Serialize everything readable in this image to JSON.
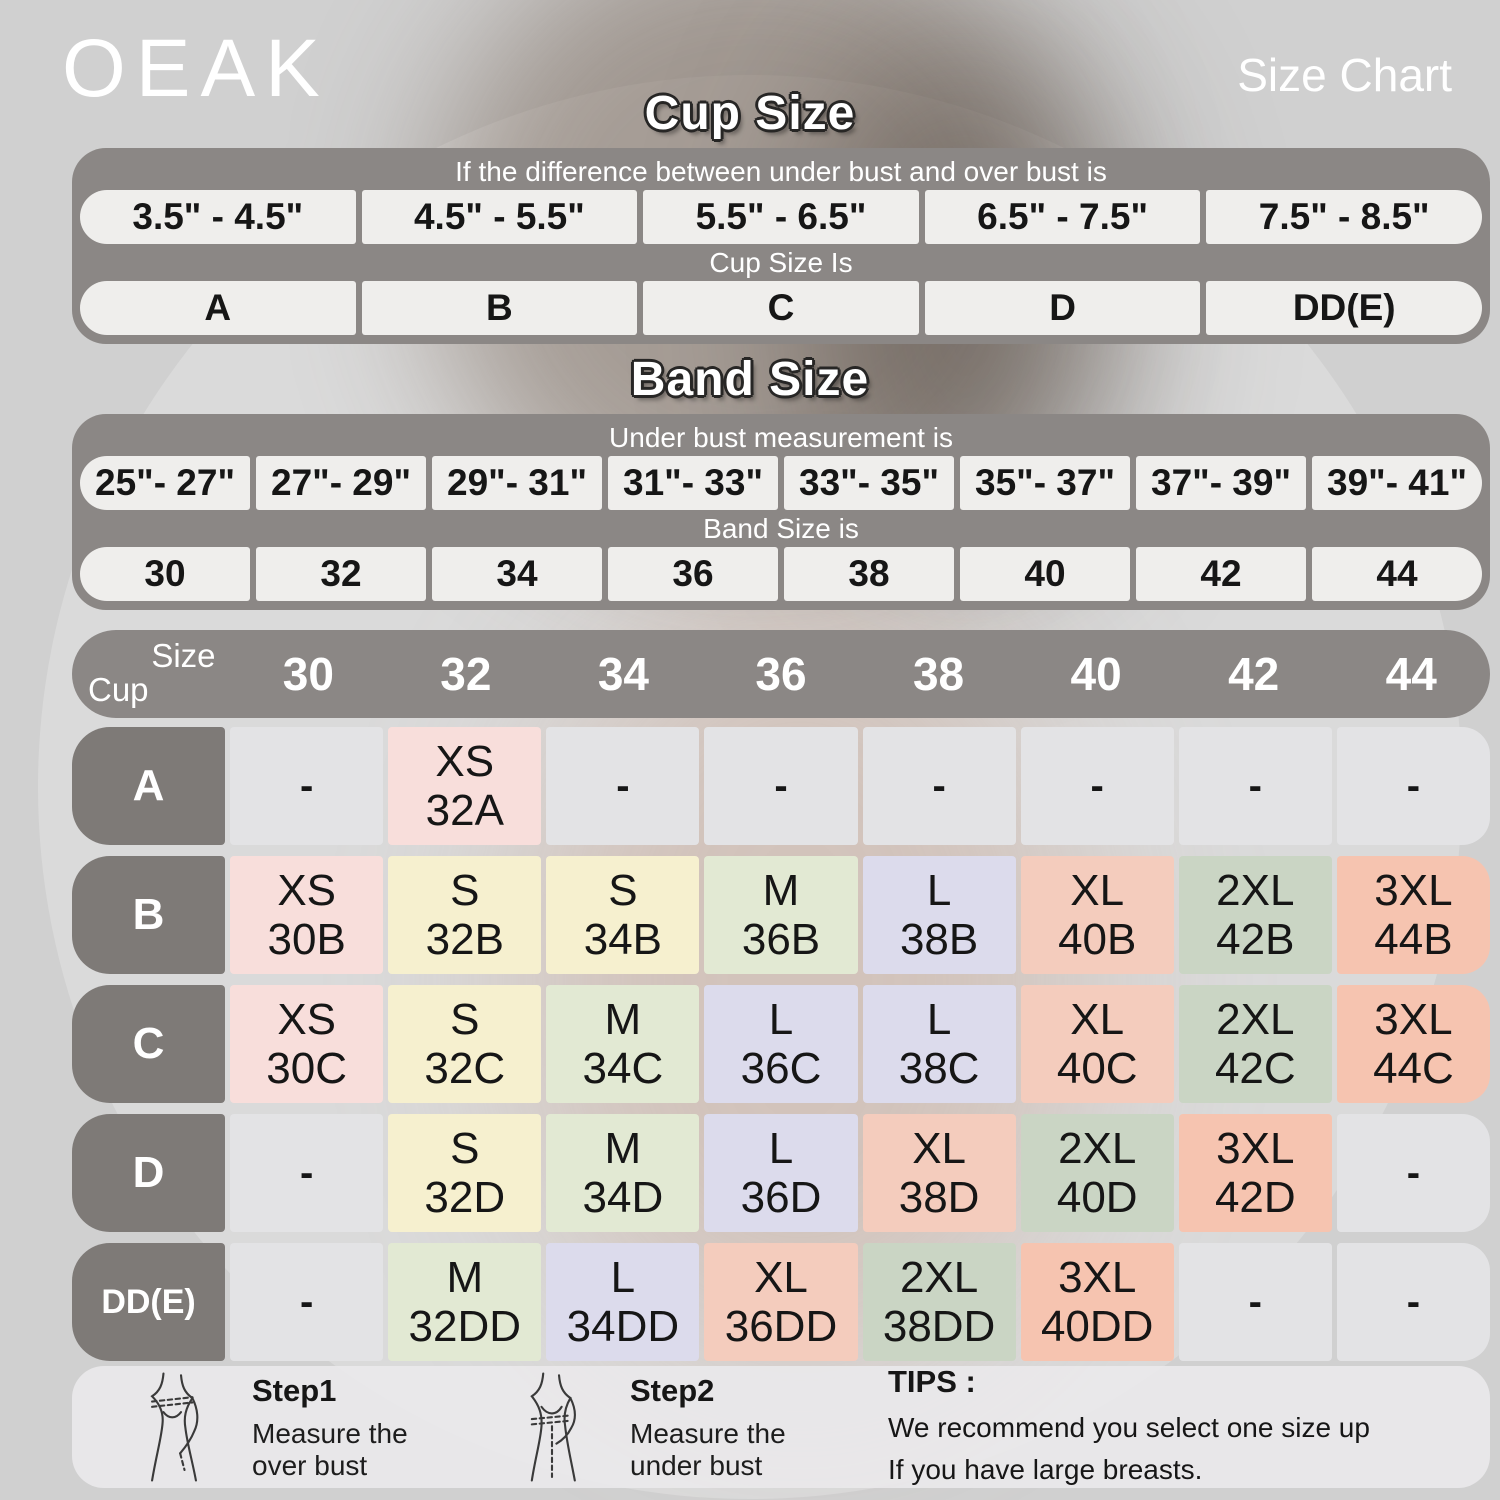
{
  "header": {
    "logo": "OEAK",
    "title": "Size Chart"
  },
  "cup_section": {
    "title": "Cup Size",
    "condition": "If the  difference between under bust and over bust is",
    "ranges": [
      "3.5\" - 4.5\"",
      "4.5\" - 5.5\"",
      "5.5\" - 6.5\"",
      "6.5\" - 7.5\"",
      "7.5\" - 8.5\""
    ],
    "result_label": "Cup Size Is",
    "results": [
      "A",
      "B",
      "C",
      "D",
      "DD(E)"
    ]
  },
  "band_section": {
    "title": "Band Size",
    "condition": "Under bust measurement is",
    "ranges": [
      "25\"- 27\"",
      "27\"- 29\"",
      "29\"- 31\"",
      "31\"- 33\"",
      "33\"- 35\"",
      "35\"- 37\"",
      "37\"- 39\"",
      "39\"- 41\""
    ],
    "result_label": "Band Size is",
    "results": [
      "30",
      "32",
      "34",
      "36",
      "38",
      "40",
      "42",
      "44"
    ]
  },
  "matrix": {
    "corner": {
      "top": "Size",
      "bottom": "Cup"
    },
    "columns": [
      "30",
      "32",
      "34",
      "36",
      "38",
      "40",
      "42",
      "44"
    ],
    "empty_cell": "-",
    "rows": [
      {
        "label": "A",
        "cells": [
          null,
          [
            "XS",
            "32A"
          ],
          null,
          null,
          null,
          null,
          null,
          null
        ]
      },
      {
        "label": "B",
        "cells": [
          [
            "XS",
            "30B"
          ],
          [
            "S",
            "32B"
          ],
          [
            "S",
            "34B"
          ],
          [
            "M",
            "36B"
          ],
          [
            "L",
            "38B"
          ],
          [
            "XL",
            "40B"
          ],
          [
            "2XL",
            "42B"
          ],
          [
            "3XL",
            "44B"
          ]
        ]
      },
      {
        "label": "C",
        "cells": [
          [
            "XS",
            "30C"
          ],
          [
            "S",
            "32C"
          ],
          [
            "M",
            "34C"
          ],
          [
            "L",
            "36C"
          ],
          [
            "L",
            "38C"
          ],
          [
            "XL",
            "40C"
          ],
          [
            "2XL",
            "42C"
          ],
          [
            "3XL",
            "44C"
          ]
        ]
      },
      {
        "label": "D",
        "cells": [
          null,
          [
            "S",
            "32D"
          ],
          [
            "M",
            "34D"
          ],
          [
            "L",
            "36D"
          ],
          [
            "XL",
            "38D"
          ],
          [
            "2XL",
            "40D"
          ],
          [
            "3XL",
            "42D"
          ],
          null
        ]
      },
      {
        "label": "DD(E)",
        "cells": [
          null,
          [
            "M",
            "32DD"
          ],
          [
            "L",
            "34DD"
          ],
          [
            "XL",
            "36DD"
          ],
          [
            "2XL",
            "38DD"
          ],
          [
            "3XL",
            "40DD"
          ],
          null,
          null
        ]
      }
    ]
  },
  "size_colors": {
    "XS": "#f8dedb",
    "S": "#f6f0cf",
    "M": "#e2e9d3",
    "L": "#dcdbec",
    "XL": "#f4ccbd",
    "2XL": "#cad5c4",
    "3XL": "#f6c4b0",
    "empty": "#e3e3e5"
  },
  "ui_colors": {
    "bar_dark": "#8b8785",
    "row_label_dark": "#7e7a77",
    "light_cell": "#efeeec",
    "background": "#d0d0d0"
  },
  "footer": {
    "steps": [
      {
        "title": "Step1",
        "line1": "Measure the",
        "line2": "over bust",
        "icon": "measure-over-bust-icon"
      },
      {
        "title": "Step2",
        "line1": "Measure the",
        "line2": "under bust",
        "icon": "measure-under-bust-icon"
      }
    ],
    "tips": {
      "title": "TIPS :",
      "line1": "We recommend you select one size up",
      "line2": "If you have large breasts."
    }
  }
}
